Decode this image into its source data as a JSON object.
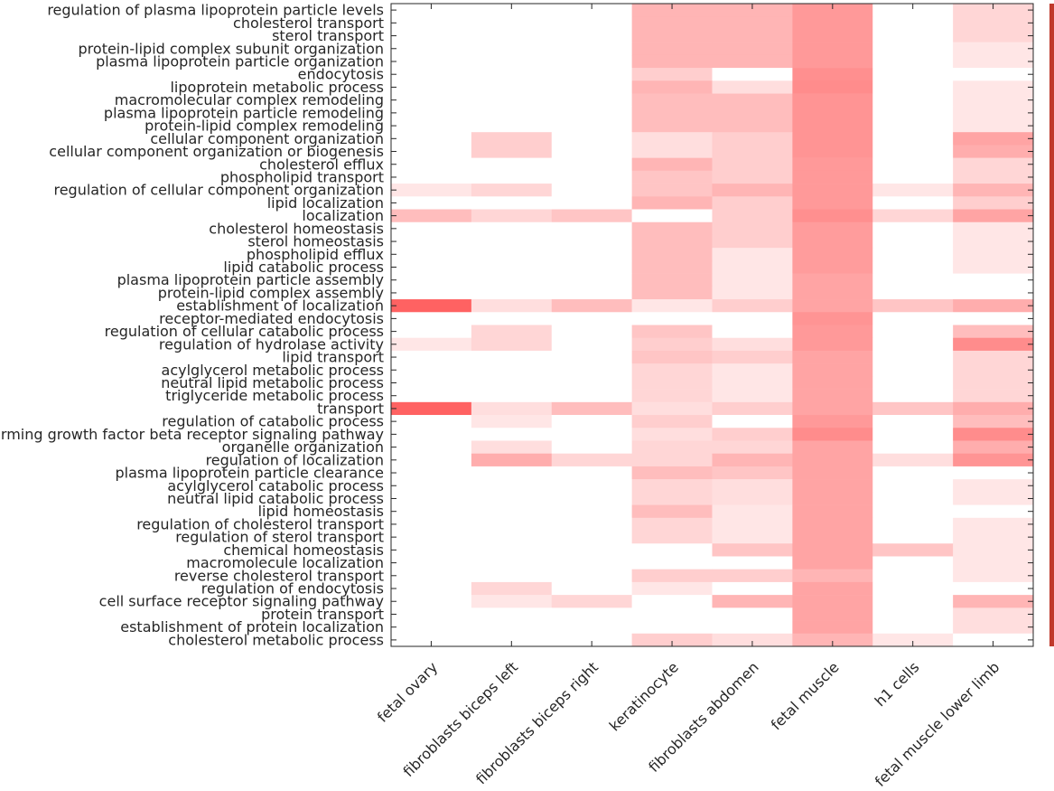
{
  "chart_data": {
    "type": "heatmap",
    "title": "",
    "xlabel": "",
    "ylabel": "",
    "colorscale": {
      "low": "#ffffff",
      "high": "#ff5a5a",
      "bar_color": "#c0392b"
    },
    "columns": [
      "fetal ovary",
      "fibroblasts biceps left",
      "fibroblasts biceps right",
      "keratinocyte",
      "fibroblasts abdomen",
      "fetal muscle",
      "h1 cells",
      "fetal muscle lower limb"
    ],
    "rows": [
      "regulation of plasma lipoprotein particle levels",
      "cholesterol transport",
      "sterol transport",
      "protein-lipid complex subunit organization",
      "plasma lipoprotein particle organization",
      "endocytosis",
      "lipoprotein metabolic process",
      "macromolecular complex remodeling",
      "plasma lipoprotein particle remodeling",
      "protein-lipid complex remodeling",
      "cellular component organization",
      "cellular component organization or biogenesis",
      "cholesterol efflux",
      "phospholipid transport",
      "regulation of cellular component organization",
      "lipid localization",
      "localization",
      "cholesterol homeostasis",
      "sterol homeostasis",
      "phospholipid efflux",
      "lipid catabolic process",
      "plasma lipoprotein particle assembly",
      "protein-lipid complex assembly",
      "establishment of localization",
      "receptor-mediated endocytosis",
      "regulation of cellular catabolic process",
      "regulation of hydrolase activity",
      "lipid transport",
      "acylglycerol metabolic process",
      "neutral lipid metabolic process",
      "triglyceride metabolic process",
      "transport",
      "regulation of catabolic process",
      "transforming growth factor beta receptor signaling pathway",
      "organelle organization",
      "regulation of localization",
      "plasma lipoprotein particle clearance",
      "acylglycerol catabolic process",
      "neutral lipid catabolic process",
      "lipid homeostasis",
      "regulation of cholesterol transport",
      "regulation of sterol transport",
      "chemical homeostasis",
      "macromolecule localization",
      "reverse cholesterol transport",
      "regulation of endocytosis",
      "cell surface receptor signaling pathway",
      "protein transport",
      "establishment of protein localization",
      "cholesterol metabolic process"
    ],
    "values": [
      [
        0,
        0,
        0,
        0.45,
        0.45,
        0.62,
        0,
        0.25
      ],
      [
        0,
        0,
        0,
        0.45,
        0.45,
        0.62,
        0,
        0.25
      ],
      [
        0,
        0,
        0,
        0.45,
        0.45,
        0.62,
        0,
        0.25
      ],
      [
        0,
        0,
        0,
        0.45,
        0.45,
        0.62,
        0,
        0.15
      ],
      [
        0,
        0,
        0,
        0.45,
        0.45,
        0.62,
        0,
        0.15
      ],
      [
        0,
        0,
        0,
        0.3,
        0,
        0.68,
        0,
        0
      ],
      [
        0,
        0,
        0,
        0.45,
        0.2,
        0.7,
        0,
        0.15
      ],
      [
        0,
        0,
        0,
        0.4,
        0.4,
        0.65,
        0,
        0.15
      ],
      [
        0,
        0,
        0,
        0.4,
        0.4,
        0.65,
        0,
        0.15
      ],
      [
        0,
        0,
        0,
        0.4,
        0.4,
        0.65,
        0,
        0.15
      ],
      [
        0,
        0.3,
        0,
        0.2,
        0.3,
        0.65,
        0,
        0.55
      ],
      [
        0,
        0.3,
        0,
        0.2,
        0.3,
        0.65,
        0,
        0.5
      ],
      [
        0,
        0,
        0,
        0.45,
        0.3,
        0.62,
        0,
        0.25
      ],
      [
        0,
        0,
        0,
        0.35,
        0.3,
        0.62,
        0,
        0.25
      ],
      [
        0.15,
        0.25,
        0,
        0.35,
        0.45,
        0.62,
        0.15,
        0.45
      ],
      [
        0,
        0,
        0,
        0.45,
        0.3,
        0.62,
        0,
        0.3
      ],
      [
        0.4,
        0.25,
        0.35,
        0,
        0.3,
        0.68,
        0.25,
        0.55
      ],
      [
        0,
        0,
        0,
        0.4,
        0.3,
        0.6,
        0,
        0.15
      ],
      [
        0,
        0,
        0,
        0.4,
        0.3,
        0.6,
        0,
        0.15
      ],
      [
        0,
        0,
        0,
        0.4,
        0.15,
        0.6,
        0,
        0.15
      ],
      [
        0,
        0,
        0,
        0.4,
        0.15,
        0.6,
        0,
        0.15
      ],
      [
        0,
        0,
        0,
        0.4,
        0.15,
        0.55,
        0,
        0
      ],
      [
        0,
        0,
        0,
        0.4,
        0.15,
        0.55,
        0,
        0
      ],
      [
        0.95,
        0.2,
        0.4,
        0.15,
        0.3,
        0.55,
        0.35,
        0.5
      ],
      [
        0,
        0,
        0,
        0,
        0,
        0.65,
        0,
        0
      ],
      [
        0,
        0.25,
        0,
        0.35,
        0,
        0.62,
        0,
        0.4
      ],
      [
        0.15,
        0.25,
        0,
        0.3,
        0.2,
        0.62,
        0,
        0.7
      ],
      [
        0,
        0,
        0,
        0.35,
        0.3,
        0.55,
        0,
        0.25
      ],
      [
        0,
        0,
        0,
        0.25,
        0.15,
        0.55,
        0,
        0.25
      ],
      [
        0,
        0,
        0,
        0.25,
        0.15,
        0.55,
        0,
        0.25
      ],
      [
        0,
        0,
        0,
        0.25,
        0.15,
        0.55,
        0,
        0.25
      ],
      [
        0.95,
        0.2,
        0.4,
        0.2,
        0.3,
        0.55,
        0.35,
        0.5
      ],
      [
        0,
        0.15,
        0,
        0.3,
        0,
        0.62,
        0,
        0.4
      ],
      [
        0,
        0,
        0,
        0.2,
        0.3,
        0.7,
        0,
        0.7
      ],
      [
        0,
        0.2,
        0,
        0.25,
        0.25,
        0.55,
        0,
        0.5
      ],
      [
        0,
        0.5,
        0.25,
        0.25,
        0.45,
        0.55,
        0.2,
        0.65
      ],
      [
        0,
        0,
        0,
        0.4,
        0.35,
        0.55,
        0,
        0
      ],
      [
        0,
        0,
        0,
        0.25,
        0.2,
        0.55,
        0,
        0.15
      ],
      [
        0,
        0,
        0,
        0.25,
        0.2,
        0.55,
        0,
        0.15
      ],
      [
        0,
        0,
        0,
        0.4,
        0.15,
        0.55,
        0,
        0
      ],
      [
        0,
        0,
        0,
        0.25,
        0.15,
        0.55,
        0,
        0.15
      ],
      [
        0,
        0,
        0,
        0.25,
        0.15,
        0.55,
        0,
        0.15
      ],
      [
        0,
        0,
        0,
        0,
        0.35,
        0.55,
        0.35,
        0.15
      ],
      [
        0,
        0,
        0,
        0,
        0,
        0.55,
        0,
        0.15
      ],
      [
        0,
        0,
        0,
        0.3,
        0.3,
        0.45,
        0,
        0.15
      ],
      [
        0,
        0.25,
        0,
        0.15,
        0,
        0.55,
        0,
        0
      ],
      [
        0,
        0.15,
        0.25,
        0,
        0.45,
        0.55,
        0,
        0.45
      ],
      [
        0,
        0,
        0,
        0,
        0,
        0.55,
        0,
        0.2
      ],
      [
        0,
        0,
        0,
        0,
        0,
        0.55,
        0,
        0.2
      ],
      [
        0,
        0,
        0,
        0.3,
        0.2,
        0.45,
        0.15,
        0
      ]
    ]
  }
}
